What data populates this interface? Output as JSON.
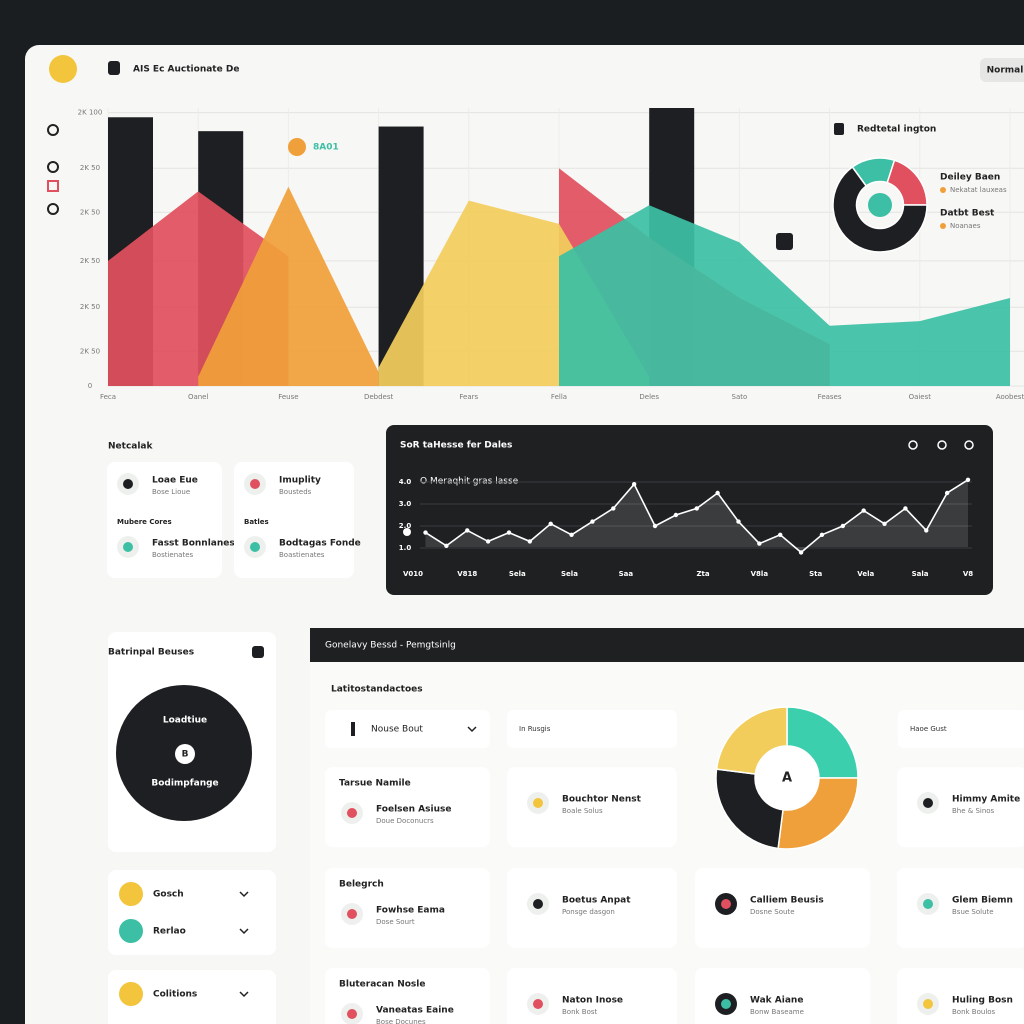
{
  "header": {
    "title": "AIS Ec Auctionate De",
    "button": "Normal"
  },
  "chart_data": [
    {
      "type": "area",
      "annotation": "8A01",
      "categories": [
        "Feca",
        "Oanel",
        "Feuse",
        "Debdest",
        "Fears",
        "Fella",
        "Deles",
        "Sato",
        "Feases",
        "Oaiest",
        "Aoobest"
      ],
      "ylim": [
        0,
        6
      ],
      "yticks": [
        0,
        {
          "value": 0.75,
          "label": "2K 50"
        },
        {
          "value": 1.7,
          "label": "2K 50"
        },
        {
          "value": 2.7,
          "label": "2K 50"
        },
        {
          "value": 3.75,
          "label": "2K 50"
        },
        {
          "value": 4.7,
          "label": "2K 50"
        },
        {
          "value": 5.9,
          "label": "2K 100"
        }
      ],
      "grid": true,
      "series": [
        {
          "mark": "bar",
          "color": "#1d1f22",
          "values": [
            5.8,
            5.5,
            null,
            5.6,
            null,
            null,
            6,
            null,
            null,
            null,
            null
          ]
        },
        {
          "mark": "area",
          "color": "#e0505e",
          "values": [
            2.7,
            4.2,
            2.8,
            null,
            null,
            4.7,
            3.2,
            1.9,
            0.9,
            null,
            null
          ]
        },
        {
          "mark": "area",
          "color": "#f0a03a",
          "values": [
            null,
            0.2,
            4.3,
            0.3,
            null,
            null,
            null,
            null,
            null,
            null,
            null
          ]
        },
        {
          "mark": "area",
          "color": "#f2cd5c",
          "values": [
            null,
            null,
            null,
            0.4,
            4.0,
            3.5,
            0.2,
            null,
            null,
            null,
            null
          ]
        },
        {
          "mark": "area",
          "color": "#3cbfa4",
          "values": [
            null,
            null,
            null,
            null,
            null,
            2.8,
            3.9,
            3.1,
            1.3,
            1.4,
            1.9
          ]
        }
      ]
    },
    {
      "type": "line",
      "title": "SoR taHesse fer Dales",
      "subtitle": "O Meraqhit gras lasse",
      "color": "#ffffff",
      "x": [
        0,
        1,
        2,
        3,
        4,
        5,
        6,
        7,
        8,
        9,
        10,
        11,
        12,
        13,
        14,
        15,
        16,
        17,
        18,
        19,
        20,
        21,
        22,
        23,
        24,
        25,
        26
      ],
      "values": [
        1.7,
        1.1,
        1.8,
        1.3,
        1.7,
        1.3,
        2.1,
        1.6,
        2.2,
        2.8,
        3.9,
        2.0,
        2.5,
        2.8,
        3.5,
        2.2,
        1.2,
        1.6,
        0.8,
        1.6,
        2.0,
        2.7,
        2.1,
        2.8,
        1.8,
        3.5,
        4.1
      ],
      "xlim": [
        -0.6,
        26
      ],
      "xticks": [
        {
          "value": -0.6,
          "label": "V010"
        },
        {
          "value": 2,
          "label": "V818"
        },
        {
          "value": 4.4,
          "label": "Sela"
        },
        {
          "value": 6.9,
          "label": "Sela"
        },
        {
          "value": 9.6,
          "label": "Saa"
        },
        {
          "value": 13.3,
          "label": "Zta"
        },
        {
          "value": 16,
          "label": "V8la"
        },
        {
          "value": 18.7,
          "label": "Sta"
        },
        {
          "value": 21.1,
          "label": "Vela"
        },
        {
          "value": 23.7,
          "label": "Sala"
        },
        {
          "value": 26,
          "label": "V8"
        }
      ],
      "ylim": [
        0.5,
        4.5
      ],
      "yticks": [
        {
          "value": 1,
          "label": "1.0"
        },
        {
          "value": 2,
          "label": "2.0"
        },
        {
          "value": 3,
          "label": "3.0"
        },
        {
          "value": 4,
          "label": "4.0"
        }
      ],
      "grid": true
    },
    {
      "type": "pie",
      "title": "Redtetal ington",
      "values": [
        15,
        20,
        65
      ],
      "colors": [
        "#3cbfa4",
        "#e0505e",
        "#1d1f22"
      ],
      "hole": 0.5,
      "legend": [
        {
          "name": "Deiley Baen",
          "note": "Nekatat lauxeas"
        },
        {
          "name": "Datbt Best",
          "note": "Noanaes"
        }
      ]
    },
    {
      "type": "pie",
      "center_label": "A",
      "values": [
        25,
        27,
        25,
        23
      ],
      "colors": [
        "#3ccfae",
        "#f0a03a",
        "#1d1f22",
        "#f2cd5c"
      ],
      "hole": 0.45
    }
  ],
  "network": {
    "title": "Netcalak",
    "cards": [
      {
        "items": [
          {
            "name": "Loae Eue",
            "sub": "Bose Lioue"
          },
          {
            "name": "Fasst Bonnlanes",
            "sub": "Bostienates"
          }
        ],
        "section": "Mubere Cores"
      },
      {
        "items": [
          {
            "name": "Imuplity",
            "sub": "Bousteds"
          },
          {
            "name": "Bodtagas Fonde",
            "sub": "Boastienates"
          }
        ],
        "section": "Batles"
      }
    ]
  },
  "summary": {
    "title": "Batrinpal Beuses",
    "circle_top": "Loadtiue",
    "circle_mid": "B",
    "circle_bottom": "Bodimpfange",
    "list": [
      "Gosch",
      "Rerlao",
      "Colitions"
    ]
  },
  "bottom": {
    "bar": "Gonelavy Bessd  -  Pemgtsinlg",
    "section": "Latitostandactoes",
    "filters": [
      "Nouse Bout",
      "In Rusgis",
      "Haoe Gust"
    ],
    "groups": [
      {
        "title": "Tarsue Namile",
        "items": [
          {
            "name": "Foelsen Asiuse",
            "sub": "Doue Doconucrs"
          },
          {
            "name": "Bouchtor Nenst",
            "sub": "Boale Solus"
          },
          {
            "name": "Himmy Amite",
            "sub": "Bhe & Sinos"
          }
        ]
      },
      {
        "title": "Belegrch",
        "items": [
          {
            "name": "Fowhse Eama",
            "sub": "Dose Sourt"
          },
          {
            "name": "Boetus Anpat",
            "sub": "Ponsge dasgon"
          },
          {
            "name": "Calliem Beusis",
            "sub": "Dosne Soute"
          },
          {
            "name": "Glem Biemn",
            "sub": "Bsue Solute"
          }
        ]
      },
      {
        "title": "Bluteracan Nosle",
        "items": [
          {
            "name": "Vaneatas Eaine",
            "sub": "Bose Docunes"
          },
          {
            "name": "Naton Inose",
            "sub": "Bonk Bost"
          },
          {
            "name": "Wak Aiane",
            "sub": "Bonw Baseame"
          },
          {
            "name": "Huling Bosn",
            "sub": "Bonk Boulos"
          }
        ]
      }
    ]
  }
}
